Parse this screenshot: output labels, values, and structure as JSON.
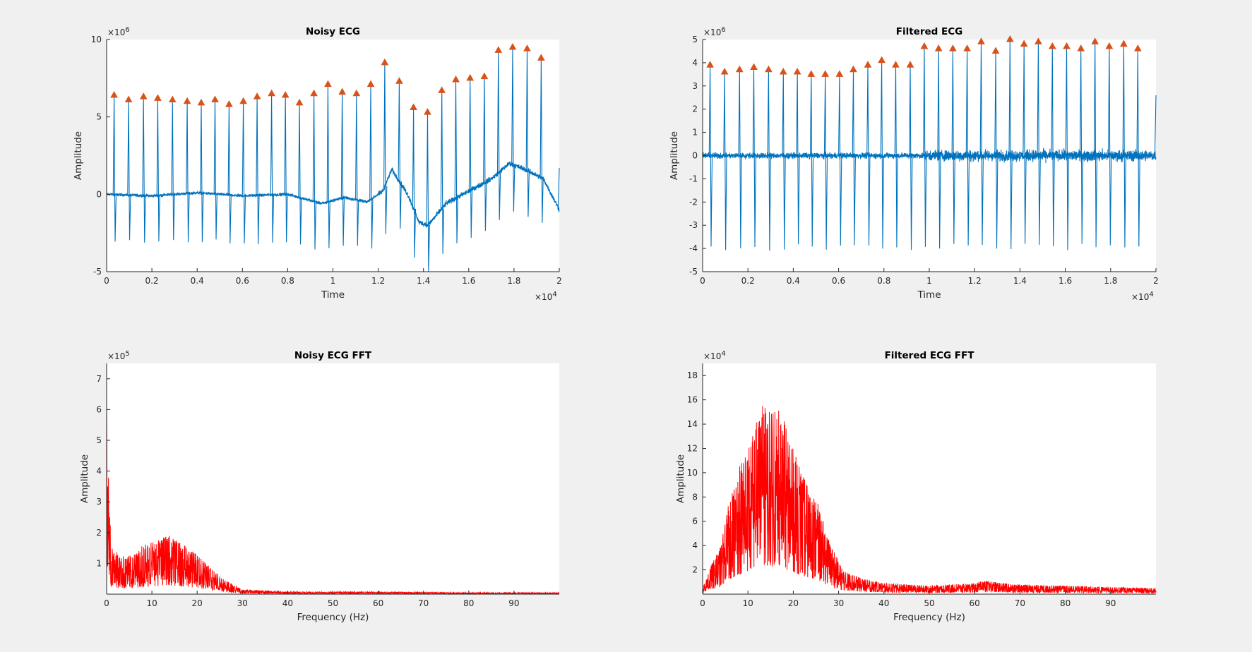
{
  "chart_data": [
    {
      "id": "noisy-ecg",
      "type": "line",
      "title": "Noisy ECG",
      "xlabel": "Time",
      "ylabel": "Amplitude",
      "x_multiplier": "10^4",
      "y_multiplier": "10^6",
      "xlim": [
        0,
        20000
      ],
      "ylim": [
        -5000000,
        10000000
      ],
      "xticks": [
        0,
        0.2,
        0.4,
        0.6,
        0.8,
        1,
        1.2,
        1.4,
        1.6,
        1.8,
        2
      ],
      "yticks": [
        -5,
        0,
        5,
        10
      ],
      "line_color": "#0072bd",
      "marker_color": "#d95319",
      "peaks": {
        "x": [
          330,
          970,
          1630,
          2260,
          2910,
          3560,
          4180,
          4790,
          5410,
          6040,
          6650,
          7290,
          7900,
          8520,
          9160,
          9780,
          10410,
          11040,
          11670,
          12290,
          12930,
          13560,
          14180,
          14810,
          15430,
          16060,
          16690,
          17310,
          17940,
          18580,
          19200
        ],
        "y": [
          6.4,
          6.1,
          6.3,
          6.2,
          6.1,
          6.0,
          5.9,
          6.1,
          5.8,
          6.0,
          6.3,
          6.5,
          6.4,
          5.9,
          6.5,
          7.1,
          6.6,
          6.5,
          7.1,
          8.5,
          7.3,
          5.6,
          5.3,
          6.7,
          7.4,
          7.5,
          7.6,
          9.3,
          9.5,
          9.4,
          8.8
        ],
        "y_unit": "x10^6"
      },
      "baseline": {
        "x": [
          0,
          2000,
          4000,
          6000,
          8000,
          9500,
          10500,
          11500,
          12200,
          12600,
          13300,
          13800,
          14200,
          15000,
          16000,
          17000,
          17800,
          18500,
          19300,
          20000
        ],
        "y": [
          0,
          -0.1,
          0.1,
          -0.1,
          0.0,
          -0.6,
          -0.2,
          -0.5,
          0.2,
          1.6,
          0.0,
          -1.8,
          -2.0,
          -0.6,
          0.2,
          1.0,
          2.0,
          1.6,
          1.0,
          -1.0
        ],
        "y_unit": "x10^6"
      },
      "r_wave_min_approx": -3.0
    },
    {
      "id": "filtered-ecg",
      "type": "line",
      "title": "Filtered ECG",
      "xlabel": "Time",
      "ylabel": "Amplitude",
      "x_multiplier": "10^4",
      "y_multiplier": "10^6",
      "xlim": [
        0,
        20000
      ],
      "ylim": [
        -5000000,
        5000000
      ],
      "xticks": [
        0,
        0.2,
        0.4,
        0.6,
        0.8,
        1,
        1.2,
        1.4,
        1.6,
        1.8,
        2
      ],
      "yticks": [
        -5,
        -4,
        -3,
        -2,
        -1,
        0,
        1,
        2,
        3,
        4,
        5
      ],
      "line_color": "#0072bd",
      "marker_color": "#d95319",
      "peaks": {
        "x": [
          330,
          970,
          1630,
          2260,
          2910,
          3560,
          4180,
          4790,
          5410,
          6040,
          6650,
          7290,
          7900,
          8520,
          9160,
          9780,
          10410,
          11040,
          11670,
          12290,
          12930,
          13560,
          14180,
          14810,
          15430,
          16060,
          16690,
          17310,
          17940,
          18580,
          19200
        ],
        "y": [
          3.9,
          3.6,
          3.7,
          3.8,
          3.7,
          3.6,
          3.6,
          3.5,
          3.5,
          3.5,
          3.7,
          3.9,
          4.1,
          3.9,
          3.9,
          4.7,
          4.6,
          4.6,
          4.6,
          4.9,
          4.5,
          5.0,
          4.8,
          4.9,
          4.7,
          4.7,
          4.6,
          4.9,
          4.7,
          4.8,
          4.6
        ],
        "y_unit": "x10^6"
      },
      "r_wave_min_approx": -3.9
    },
    {
      "id": "noisy-ecg-fft",
      "type": "line",
      "title": "Noisy ECG FFT",
      "xlabel": "Frequency (Hz)",
      "ylabel": "Amplitude",
      "y_multiplier": "10^5",
      "xlim": [
        0,
        100
      ],
      "ylim": [
        0,
        750000
      ],
      "xticks": [
        0,
        10,
        20,
        30,
        40,
        50,
        60,
        70,
        80,
        90
      ],
      "yticks": [
        1,
        2,
        3,
        4,
        5,
        6,
        7
      ],
      "line_color": "#ff0000",
      "envelope": {
        "x": [
          0,
          0.3,
          1,
          2,
          4,
          6,
          8,
          10,
          12,
          13,
          14,
          16,
          18,
          20,
          22,
          25,
          28,
          30,
          40,
          60,
          80,
          100
        ],
        "y": [
          6.5,
          4.3,
          1.6,
          1.4,
          1.2,
          1.3,
          1.6,
          1.7,
          1.8,
          2.0,
          1.9,
          1.7,
          1.5,
          1.3,
          1.0,
          0.6,
          0.3,
          0.15,
          0.08,
          0.08,
          0.05,
          0.05
        ],
        "y_unit": "x10^5"
      }
    },
    {
      "id": "filtered-ecg-fft",
      "type": "line",
      "title": "Filtered ECG FFT",
      "xlabel": "Frequency (Hz)",
      "ylabel": "Amplitude",
      "y_multiplier": "10^4",
      "xlim": [
        0,
        100
      ],
      "ylim": [
        0,
        190000
      ],
      "xticks": [
        0,
        10,
        20,
        30,
        40,
        50,
        60,
        70,
        80,
        90
      ],
      "yticks": [
        2,
        4,
        6,
        8,
        10,
        12,
        14,
        16,
        18
      ],
      "line_color": "#ff0000",
      "envelope": {
        "x": [
          0,
          2,
          4,
          6,
          8,
          10,
          12,
          13.5,
          15,
          17,
          19,
          21,
          23,
          25,
          27,
          29,
          31,
          35,
          40,
          50,
          60,
          62,
          70,
          80,
          90,
          100
        ],
        "y": [
          0.5,
          2.5,
          4.0,
          8.0,
          10.5,
          12.0,
          14.5,
          16.0,
          15.0,
          15.5,
          13.0,
          11.0,
          9.0,
          8.0,
          5.5,
          3.5,
          2.0,
          1.3,
          0.9,
          0.7,
          0.9,
          1.1,
          0.8,
          0.7,
          0.6,
          0.5
        ],
        "y_unit": "x10^4"
      }
    }
  ],
  "labels": {
    "noisy_title": "Noisy ECG",
    "filtered_title": "Filtered ECG",
    "noisy_fft_title": "Noisy ECG FFT",
    "filtered_fft_title": "Filtered ECG FFT",
    "time": "Time",
    "amplitude": "Amplitude",
    "frequency": "Frequency (Hz)",
    "exp_times": "×10",
    "exp4": "4",
    "exp5": "5",
    "exp6": "6"
  }
}
